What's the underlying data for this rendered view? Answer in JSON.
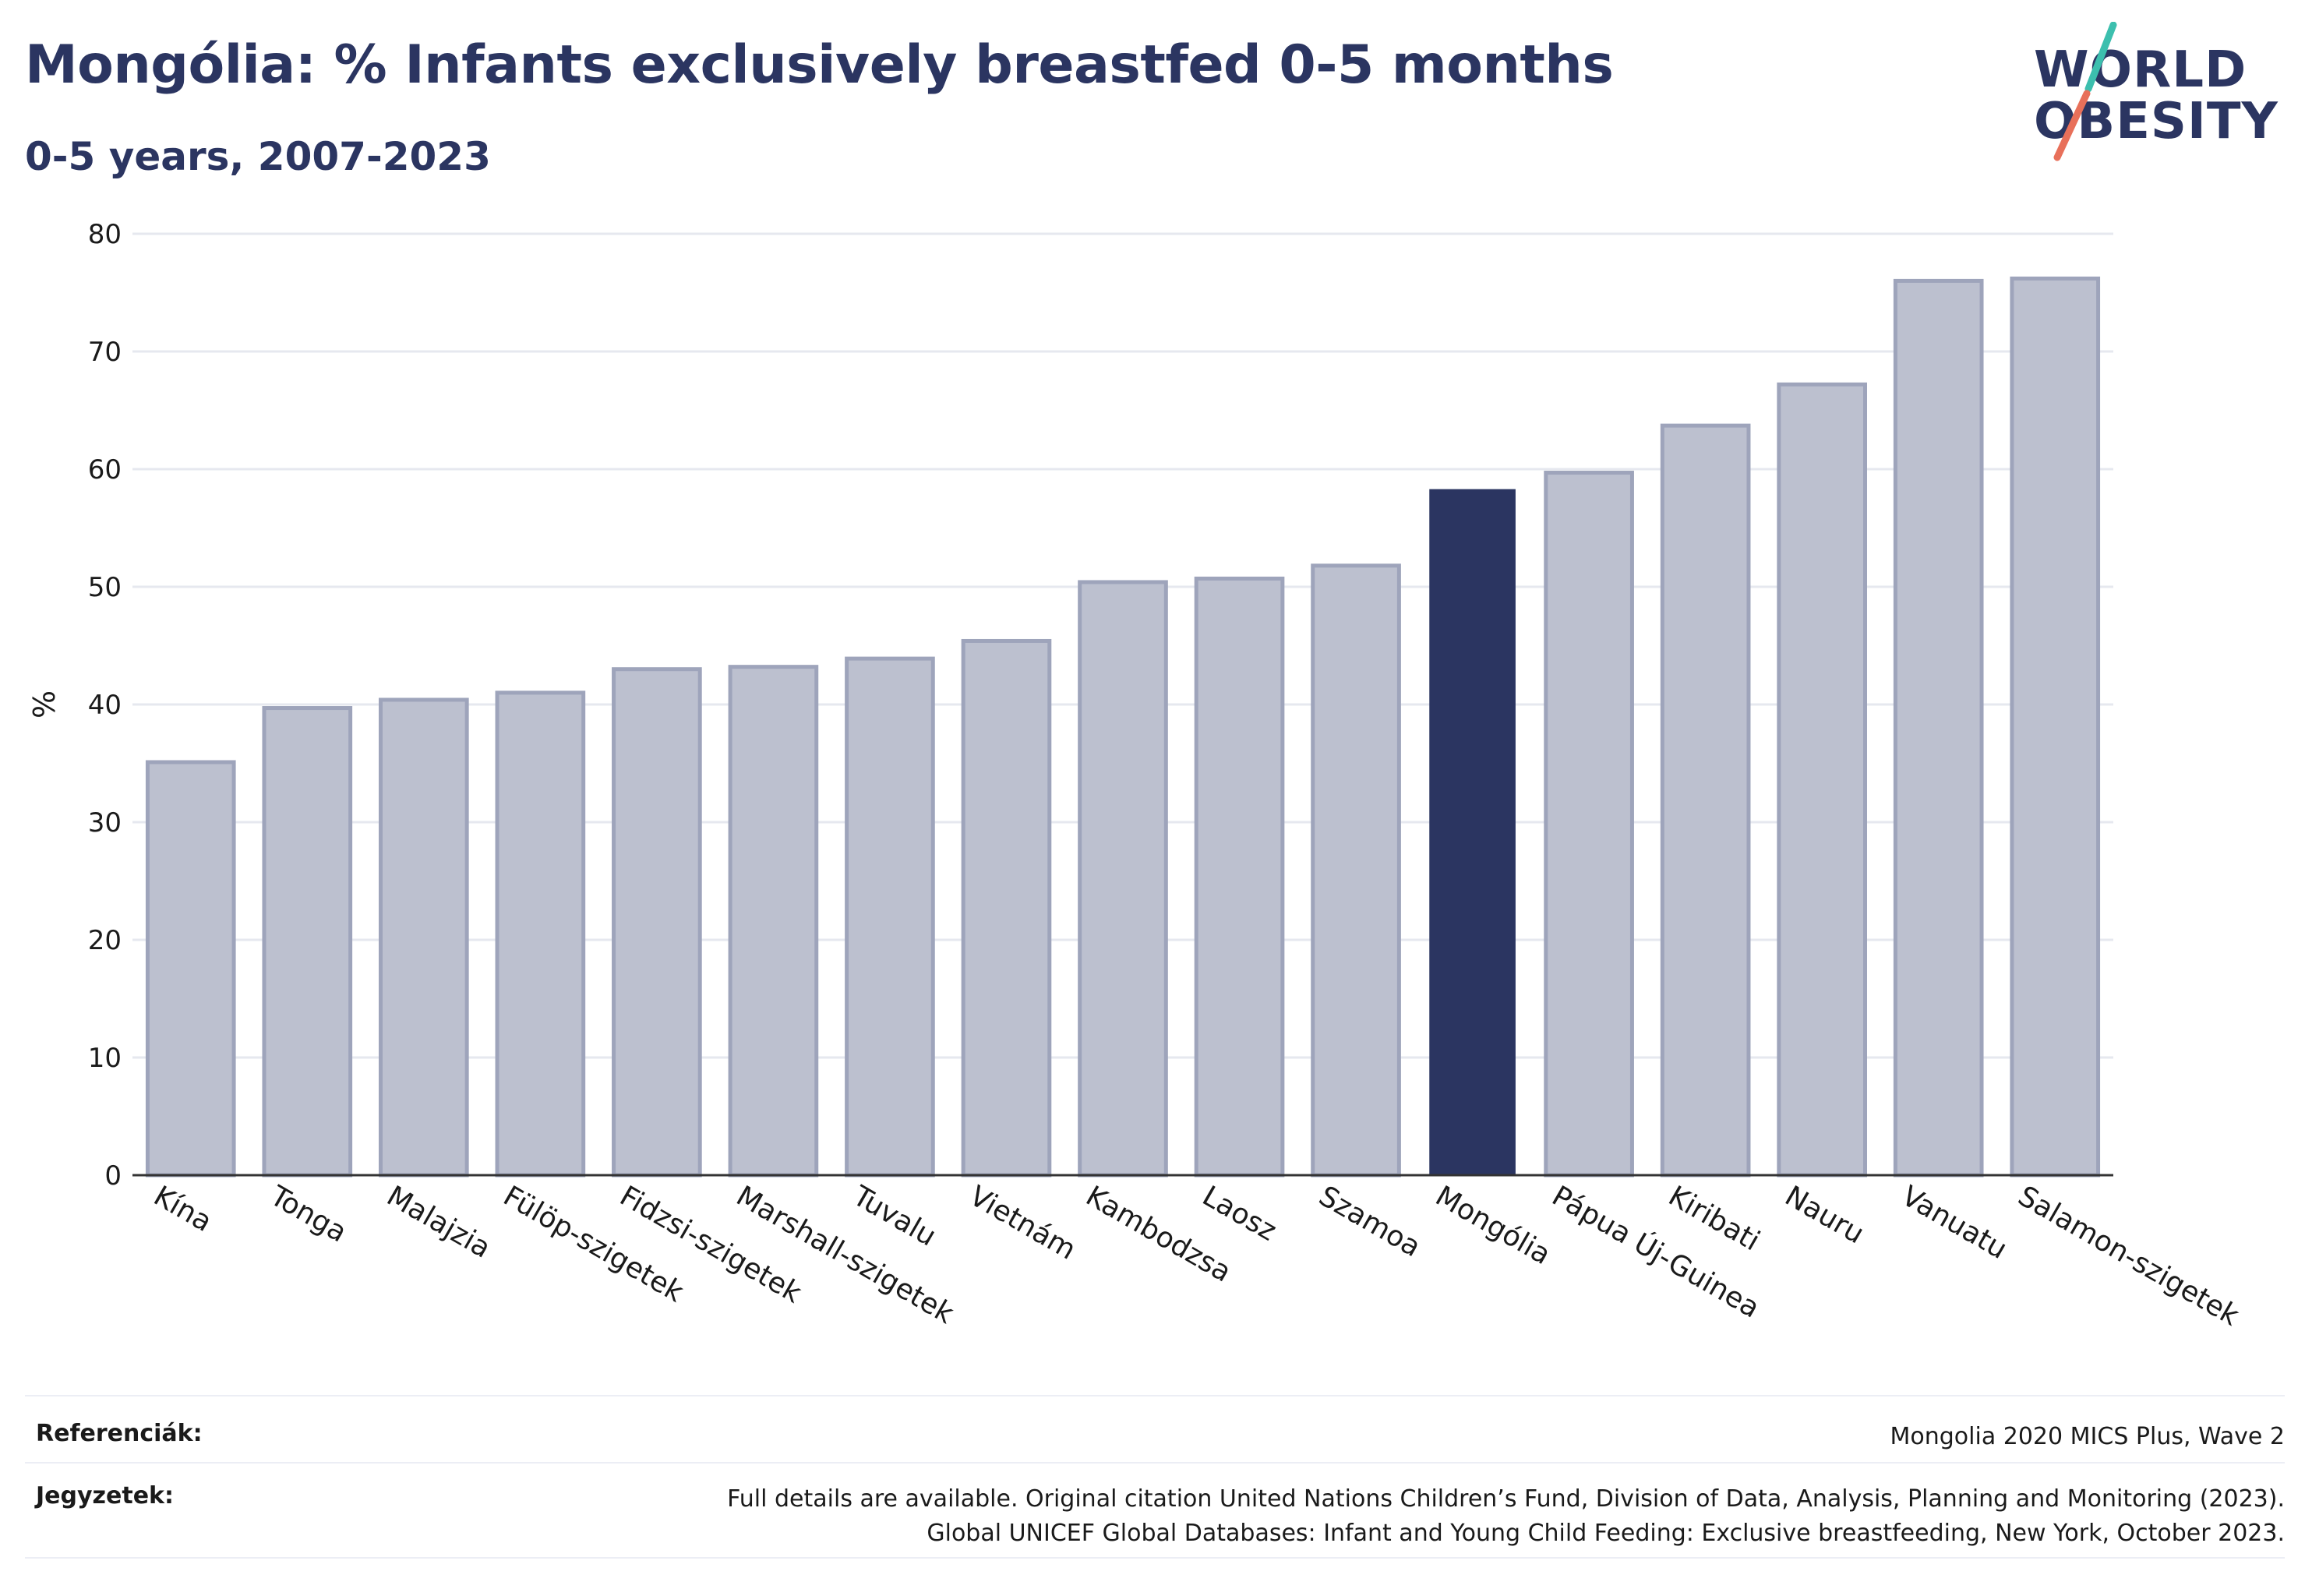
{
  "header": {
    "title": "Mongólia: % Infants exclusively breastfed 0-5 months",
    "subtitle": "0-5 years, 2007-2023"
  },
  "logo": {
    "line1": "WORLD",
    "line2": "OBESITY",
    "slash_colors": [
      "#3cbfae",
      "#e8705a"
    ]
  },
  "colors": {
    "highlight": "#2b3561",
    "other": "#bcc0cf",
    "other_stroke": "#9ea4bb",
    "grid": "#e6e8ef",
    "axis": "#333333"
  },
  "chart_data": {
    "type": "bar",
    "ylabel": "%",
    "ylim": [
      0,
      80
    ],
    "yticks": [
      0,
      10,
      20,
      30,
      40,
      50,
      60,
      70,
      80
    ],
    "grid": true,
    "highlight": "Mongólia",
    "categories": [
      "Kína",
      "Tonga",
      "Malajzia",
      "Fülöp-szigetek",
      "Fidzsi-szigetek",
      "Marshall-szigetek",
      "Tuvalu",
      "Vietnám",
      "Kambodzsa",
      "Laosz",
      "Szamoa",
      "Mongólia",
      "Pápua Új-Guinea",
      "Kiribati",
      "Nauru",
      "Vanuatu",
      "Salamon-szigetek"
    ],
    "values": [
      35.1,
      39.7,
      40.4,
      41.0,
      43.0,
      43.2,
      43.9,
      45.4,
      50.4,
      50.7,
      51.8,
      58.3,
      59.7,
      63.7,
      67.2,
      76.0,
      76.2
    ]
  },
  "footer": {
    "references_label": "Referenciák:",
    "references_value": "Mongolia 2020 MICS Plus, Wave 2",
    "notes_label": "Jegyzetek:",
    "notes_line1": "Full details are available. Original citation United Nations Children’s Fund, Division of Data, Analysis, Planning and Monitoring (2023).",
    "notes_line2": "Global UNICEF Global Databases: Infant and Young Child Feeding: Exclusive breastfeeding, New York, October 2023."
  }
}
